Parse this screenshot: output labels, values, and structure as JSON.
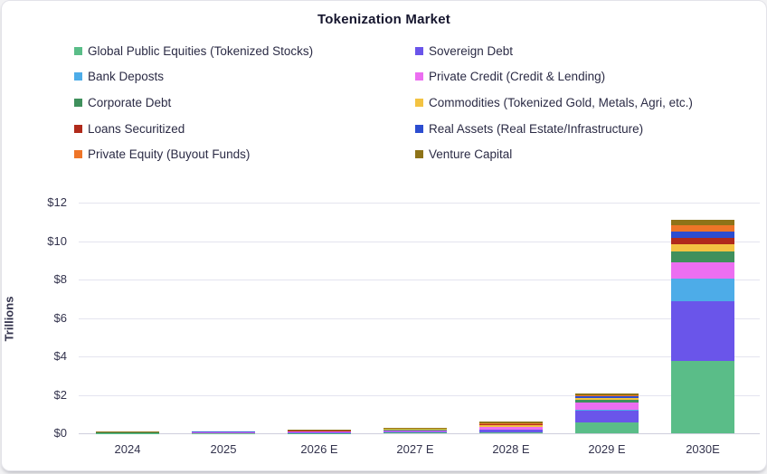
{
  "chart_data": {
    "type": "bar",
    "stacked": true,
    "title": "Tokenization Market",
    "ylabel": "Trillions",
    "grid": true,
    "legend_position": "top-two-columns",
    "ylim": [
      0,
      12
    ],
    "y_tick_values": [
      0,
      2,
      4,
      6,
      8,
      10,
      12
    ],
    "y_tick_labels": [
      "$0",
      "$2",
      "$4",
      "$6",
      "$8",
      "$10",
      "$12"
    ],
    "categories": [
      "2024",
      "2025",
      "2026 E",
      "2027 E",
      "2028 E",
      "2029 E",
      "2030E"
    ],
    "units": "USD Trillions",
    "series": [
      {
        "name": "Global Public Equities (Tokenized Stocks)",
        "color": "#5abd88",
        "values": [
          0.005,
          0.01,
          0.02,
          0.04,
          0.07,
          0.55,
          3.75
        ]
      },
      {
        "name": "Sovereign Debt",
        "color": "#6a55ea",
        "values": [
          0.005,
          0.01,
          0.02,
          0.04,
          0.1,
          0.65,
          3.1
        ]
      },
      {
        "name": "Bank Deposts",
        "color": "#4dace8",
        "values": [
          0.005,
          0.005,
          0.01,
          0.02,
          0.02,
          0.02,
          1.2
        ]
      },
      {
        "name": "Private Credit (Credit & Lending)",
        "color": "#ec6ef1",
        "values": [
          0.01,
          0.015,
          0.03,
          0.06,
          0.12,
          0.4,
          0.85
        ]
      },
      {
        "name": "Corporate Debt",
        "color": "#3f905c",
        "values": [
          0.005,
          0.005,
          0.01,
          0.02,
          0.04,
          0.1,
          0.55
        ]
      },
      {
        "name": "Commodities (Tokenized Gold, Metals, Agri, etc.)",
        "color": "#f3c342",
        "values": [
          0.02,
          0.025,
          0.03,
          0.04,
          0.08,
          0.1,
          0.4
        ]
      },
      {
        "name": "Loans Securitized",
        "color": "#b02a1b",
        "values": [
          0.002,
          0.003,
          0.005,
          0.01,
          0.02,
          0.03,
          0.3
        ]
      },
      {
        "name": "Real Assets (Real Estate/Infrastructure)",
        "color": "#2c4dd0",
        "values": [
          0.003,
          0.005,
          0.01,
          0.01,
          0.03,
          0.1,
          0.35
        ]
      },
      {
        "name": "Private Equity (Buyout Funds)",
        "color": "#ee7528",
        "values": [
          0.005,
          0.007,
          0.01,
          0.02,
          0.06,
          0.05,
          0.33
        ]
      },
      {
        "name": "Venture Capital",
        "color": "#8e7318",
        "values": [
          0.02,
          0.025,
          0.03,
          0.04,
          0.06,
          0.05,
          0.3
        ]
      }
    ],
    "totals": [
      0.08,
      0.11,
      0.175,
      0.3,
      0.6,
      2.05,
      11.13
    ]
  },
  "layout_note": "stacked bar chart card"
}
